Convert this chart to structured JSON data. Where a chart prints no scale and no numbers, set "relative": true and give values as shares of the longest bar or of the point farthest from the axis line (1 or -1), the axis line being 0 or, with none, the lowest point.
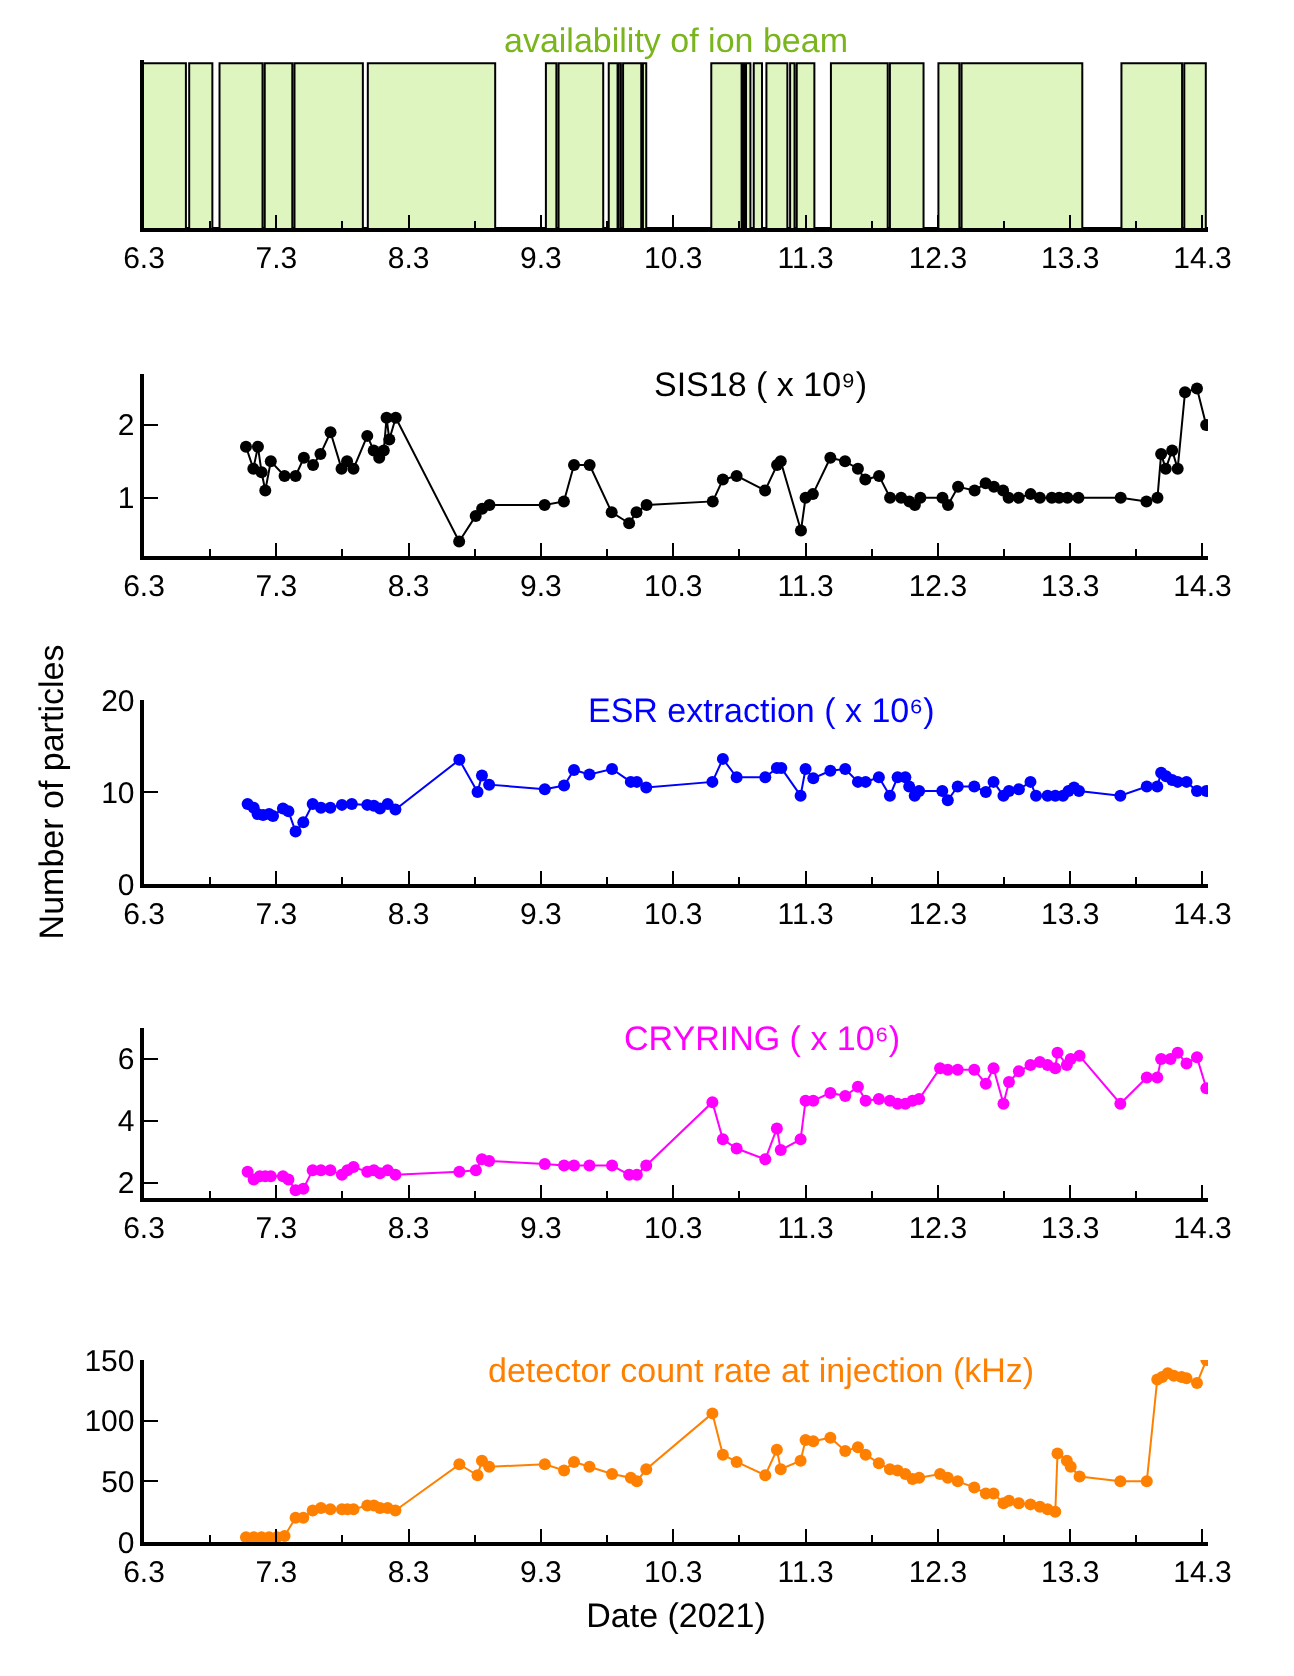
{
  "chart_data": [
    {
      "type": "area",
      "title": "availability of ion beam",
      "relative": true,
      "tick_labels": "x",
      "marker": "none",
      "xlim": [
        "2021-03-06",
        "2021-03-14T01:00"
      ],
      "xticks": [
        {
          "value": "2021-03-06",
          "label": "6.3"
        },
        {
          "value": "2021-03-07",
          "label": "7.3"
        },
        {
          "value": "2021-03-08",
          "label": "8.3"
        },
        {
          "value": "2021-03-09",
          "label": "9.3"
        },
        {
          "value": "2021-03-10",
          "label": "10.3"
        },
        {
          "value": "2021-03-11",
          "label": "11.3"
        },
        {
          "value": "2021-03-12",
          "label": "12.3"
        },
        {
          "value": "2021-03-13",
          "label": "13.3"
        },
        {
          "value": "2021-03-14",
          "label": "14.3"
        }
      ],
      "x": [
        "2021-03-06T00:00",
        "2021-03-06T07:36",
        "2021-03-06T08:12",
        "2021-03-06T12:24",
        "2021-03-06T13:42",
        "2021-03-06T21:30",
        "2021-03-06T21:54",
        "2021-03-07T02:54",
        "2021-03-07T03:18",
        "2021-03-07T15:42",
        "2021-03-07T16:36",
        "2021-03-08T15:42",
        "2021-03-09T00:54",
        "2021-03-09T02:48",
        "2021-03-09T03:12",
        "2021-03-09T11:18",
        "2021-03-09T12:18",
        "2021-03-09T13:54",
        "2021-03-09T14:06",
        "2021-03-09T14:30",
        "2021-03-09T14:54",
        "2021-03-09T18:12",
        "2021-03-09T18:30",
        "2021-03-09T19:06",
        "2021-03-10T06:54",
        "2021-03-10T12:24",
        "2021-03-10T12:42",
        "2021-03-10T12:54",
        "2021-03-10T13:12",
        "2021-03-10T14:00",
        "2021-03-10T14:36",
        "2021-03-10T16:06",
        "2021-03-10T16:54",
        "2021-03-10T20:42",
        "2021-03-10T21:12",
        "2021-03-10T22:00",
        "2021-03-10T22:24",
        "2021-03-11T01:36",
        "2021-03-11T04:36",
        "2021-03-11T14:54",
        "2021-03-11T15:18",
        "2021-03-11T21:24",
        "2021-03-12T00:06",
        "2021-03-12T03:54",
        "2021-03-12T04:18",
        "2021-03-13T02:12",
        "2021-03-13T09:18",
        "2021-03-13T20:18",
        "2021-03-13T20:42",
        "2021-03-14T00:36",
        "2021-03-14T01:00"
      ],
      "series": [
        {
          "color": "#dff5c0",
          "values": [
            1,
            0,
            1,
            0,
            1,
            0,
            1,
            0,
            1,
            0,
            1,
            0,
            1,
            0,
            1,
            0,
            1,
            0,
            1,
            0,
            1,
            0,
            1,
            0,
            1,
            0,
            1,
            0,
            1,
            0,
            1,
            0,
            1,
            0,
            1,
            0,
            1,
            0,
            1,
            0,
            1,
            0,
            1,
            0,
            1,
            0,
            1,
            0,
            1,
            0,
            0
          ]
        }
      ]
    },
    {
      "type": "line",
      "title": "SIS18 ( x 10⁹)",
      "marker": "circle",
      "xlim": [
        "2021-03-06",
        "2021-03-14T01:00"
      ],
      "ylim": [
        0.2,
        2.7
      ],
      "yticks": [
        1,
        2
      ],
      "xticks": [
        {
          "value": "2021-03-06",
          "label": "6.3"
        },
        {
          "value": "2021-03-07",
          "label": "7.3"
        },
        {
          "value": "2021-03-08",
          "label": "8.3"
        },
        {
          "value": "2021-03-09",
          "label": "9.3"
        },
        {
          "value": "2021-03-10",
          "label": "10.3"
        },
        {
          "value": "2021-03-11",
          "label": "11.3"
        },
        {
          "value": "2021-03-12",
          "label": "12.3"
        },
        {
          "value": "2021-03-13",
          "label": "13.3"
        },
        {
          "value": "2021-03-14",
          "label": "14.3"
        }
      ],
      "x": [
        "2021-03-06T18:30",
        "2021-03-06T19:50",
        "2021-03-06T20:40",
        "2021-03-06T21:20",
        "2021-03-06T22:00",
        "2021-03-06T23:00",
        "2021-03-07T01:30",
        "2021-03-07T03:30",
        "2021-03-07T05:00",
        "2021-03-07T06:40",
        "2021-03-07T08:00",
        "2021-03-07T09:50",
        "2021-03-07T11:50",
        "2021-03-07T12:50",
        "2021-03-07T14:00",
        "2021-03-07T16:30",
        "2021-03-07T17:40",
        "2021-03-07T18:40",
        "2021-03-07T19:30",
        "2021-03-07T20:00",
        "2021-03-07T20:30",
        "2021-03-07T21:40",
        "2021-03-08T09:10",
        "2021-03-08T12:10",
        "2021-03-08T13:20",
        "2021-03-08T14:40",
        "2021-03-09T00:40",
        "2021-03-09T04:10",
        "2021-03-09T06:00",
        "2021-03-09T08:50",
        "2021-03-09T12:50",
        "2021-03-09T16:00",
        "2021-03-09T17:20",
        "2021-03-09T19:10",
        "2021-03-10T07:10",
        "2021-03-10T09:00",
        "2021-03-10T11:30",
        "2021-03-10T16:40",
        "2021-03-10T18:50",
        "2021-03-10T19:30",
        "2021-03-10T23:10",
        "2021-03-11T00:00",
        "2021-03-11T01:20",
        "2021-03-11T04:30",
        "2021-03-11T07:10",
        "2021-03-11T09:30",
        "2021-03-11T10:50",
        "2021-03-11T13:20",
        "2021-03-11T15:20",
        "2021-03-11T17:20",
        "2021-03-11T18:50",
        "2021-03-11T19:50",
        "2021-03-11T20:50",
        "2021-03-12T00:50",
        "2021-03-12T01:50",
        "2021-03-12T03:40",
        "2021-03-12T06:40",
        "2021-03-12T08:40",
        "2021-03-12T10:10",
        "2021-03-12T11:50",
        "2021-03-12T12:50",
        "2021-03-12T14:40",
        "2021-03-12T16:50",
        "2021-03-12T18:30",
        "2021-03-12T20:40",
        "2021-03-12T22:00",
        "2021-03-12T23:30",
        "2021-03-13T01:30",
        "2021-03-13T09:10",
        "2021-03-13T13:50",
        "2021-03-13T15:50",
        "2021-03-13T16:30",
        "2021-03-13T17:20",
        "2021-03-13T18:30",
        "2021-03-13T19:30",
        "2021-03-13T20:50",
        "2021-03-13T23:00",
        "2021-03-14T00:40"
      ],
      "series": [
        {
          "color": "#000000",
          "values": [
            1.7,
            1.4,
            1.7,
            1.35,
            1.1,
            1.5,
            1.3,
            1.3,
            1.55,
            1.45,
            1.6,
            1.9,
            1.4,
            1.5,
            1.4,
            1.85,
            1.65,
            1.55,
            1.65,
            2.1,
            1.8,
            2.1,
            0.4,
            0.75,
            0.85,
            0.9,
            0.9,
            0.95,
            1.45,
            1.45,
            0.8,
            0.65,
            0.8,
            0.9,
            0.95,
            1.25,
            1.3,
            1.1,
            1.45,
            1.5,
            0.55,
            1.0,
            1.05,
            1.55,
            1.5,
            1.4,
            1.25,
            1.3,
            1.0,
            1.0,
            0.95,
            0.9,
            1.0,
            1.0,
            0.9,
            1.15,
            1.1,
            1.2,
            1.15,
            1.1,
            1.0,
            1.0,
            1.05,
            1.0,
            1.0,
            1.0,
            1.0,
            1.0,
            1.0,
            0.95,
            1.0,
            1.6,
            1.4,
            1.65,
            1.4,
            2.45,
            2.5,
            2.0
          ]
        }
      ]
    },
    {
      "type": "line",
      "title": "ESR extraction ( x 10⁶)",
      "ylabel": "Number of particles",
      "marker": "circle",
      "xlim": [
        "2021-03-06",
        "2021-03-14T01:00"
      ],
      "ylim": [
        0,
        20
      ],
      "yticks": [
        0,
        10,
        20
      ],
      "xticks": [
        {
          "value": "2021-03-06",
          "label": "6.3"
        },
        {
          "value": "2021-03-07",
          "label": "7.3"
        },
        {
          "value": "2021-03-08",
          "label": "8.3"
        },
        {
          "value": "2021-03-09",
          "label": "9.3"
        },
        {
          "value": "2021-03-10",
          "label": "10.3"
        },
        {
          "value": "2021-03-11",
          "label": "11.3"
        },
        {
          "value": "2021-03-12",
          "label": "12.3"
        },
        {
          "value": "2021-03-13",
          "label": "13.3"
        },
        {
          "value": "2021-03-14",
          "label": "14.3"
        }
      ],
      "x": [
        "2021-03-06T18:48",
        "2021-03-06T19:54",
        "2021-03-06T20:36",
        "2021-03-06T21:36",
        "2021-03-06T22:42",
        "2021-03-06T23:24",
        "2021-03-07T01:12",
        "2021-03-07T02:12",
        "2021-03-07T03:30",
        "2021-03-07T04:54",
        "2021-03-07T06:36",
        "2021-03-07T08:06",
        "2021-03-07T09:48",
        "2021-03-07T11:54",
        "2021-03-07T13:42",
        "2021-03-07T16:30",
        "2021-03-07T17:42",
        "2021-03-07T18:48",
        "2021-03-07T20:12",
        "2021-03-07T21:36",
        "2021-03-08T09:12",
        "2021-03-08T12:30",
        "2021-03-08T13:18",
        "2021-03-08T14:36",
        "2021-03-09T00:42",
        "2021-03-09T04:12",
        "2021-03-09T06:00",
        "2021-03-09T08:48",
        "2021-03-09T12:54",
        "2021-03-09T16:18",
        "2021-03-09T17:24",
        "2021-03-09T19:06",
        "2021-03-10T07:06",
        "2021-03-10T09:00",
        "2021-03-10T11:30",
        "2021-03-10T16:42",
        "2021-03-10T18:48",
        "2021-03-10T19:36",
        "2021-03-10T23:06",
        "2021-03-11T00:00",
        "2021-03-11T01:24",
        "2021-03-11T04:30",
        "2021-03-11T07:12",
        "2021-03-11T09:30",
        "2021-03-11T10:54",
        "2021-03-11T13:18",
        "2021-03-11T15:18",
        "2021-03-11T16:42",
        "2021-03-11T18:06",
        "2021-03-11T18:48",
        "2021-03-11T19:48",
        "2021-03-11T20:36",
        "2021-03-12T00:48",
        "2021-03-12T01:48",
        "2021-03-12T03:36",
        "2021-03-12T06:36",
        "2021-03-12T08:42",
        "2021-03-12T10:06",
        "2021-03-12T11:54",
        "2021-03-12T12:54",
        "2021-03-12T14:42",
        "2021-03-12T16:48",
        "2021-03-12T17:48",
        "2021-03-12T19:54",
        "2021-03-12T21:18",
        "2021-03-12T22:42",
        "2021-03-12T23:42",
        "2021-03-13T00:42",
        "2021-03-13T01:36",
        "2021-03-13T09:06",
        "2021-03-13T13:54",
        "2021-03-13T15:48",
        "2021-03-13T16:30",
        "2021-03-13T17:24",
        "2021-03-13T18:30",
        "2021-03-13T19:30",
        "2021-03-13T21:06",
        "2021-03-13T23:00",
        "2021-03-14T00:42"
      ],
      "series": [
        {
          "color": "#0000ff",
          "values": [
            8.7,
            8.3,
            7.6,
            7.5,
            7.6,
            7.4,
            8.2,
            7.9,
            5.7,
            6.7,
            8.7,
            8.3,
            8.3,
            8.6,
            8.7,
            8.6,
            8.5,
            8.2,
            8.7,
            8.1,
            13.5,
            10,
            11.8,
            10.8,
            10.3,
            10.7,
            12.4,
            11.9,
            12.5,
            11.1,
            11.1,
            10.5,
            11.1,
            13.6,
            11.6,
            11.6,
            12.6,
            12.6,
            9.6,
            12.5,
            11.5,
            12.3,
            12.5,
            11.1,
            11.1,
            11.6,
            9.6,
            11.6,
            11.6,
            10.6,
            9.6,
            10.1,
            10.1,
            9.1,
            10.6,
            10.6,
            10,
            11.1,
            9.6,
            10.1,
            10.3,
            11.1,
            9.6,
            9.6,
            9.6,
            9.6,
            10.1,
            10.5,
            10.1,
            9.6,
            10.6,
            10.6,
            12.1,
            11.7,
            11.3,
            11.1,
            11.1,
            10.1,
            10.1
          ]
        }
      ]
    },
    {
      "type": "line",
      "title": "CRYRING ( x 10⁶)",
      "marker": "circle",
      "xlim": [
        "2021-03-06",
        "2021-03-14T01:00"
      ],
      "ylim": [
        1.5,
        7
      ],
      "yticks": [
        2,
        4,
        6
      ],
      "xticks": [
        {
          "value": "2021-03-06",
          "label": "6.3"
        },
        {
          "value": "2021-03-07",
          "label": "7.3"
        },
        {
          "value": "2021-03-08",
          "label": "8.3"
        },
        {
          "value": "2021-03-09",
          "label": "9.3"
        },
        {
          "value": "2021-03-10",
          "label": "10.3"
        },
        {
          "value": "2021-03-11",
          "label": "11.3"
        },
        {
          "value": "2021-03-12",
          "label": "12.3"
        },
        {
          "value": "2021-03-13",
          "label": "13.3"
        },
        {
          "value": "2021-03-14",
          "label": "14.3"
        }
      ],
      "x": [
        "2021-03-06T18:48",
        "2021-03-06T19:54",
        "2021-03-06T21:00",
        "2021-03-06T22:00",
        "2021-03-06T23:00",
        "2021-03-07T01:12",
        "2021-03-07T02:12",
        "2021-03-07T03:30",
        "2021-03-07T04:54",
        "2021-03-07T06:36",
        "2021-03-07T08:06",
        "2021-03-07T09:48",
        "2021-03-07T11:54",
        "2021-03-07T12:54",
        "2021-03-07T14:00",
        "2021-03-07T16:30",
        "2021-03-07T17:42",
        "2021-03-07T18:48",
        "2021-03-07T20:12",
        "2021-03-07T21:36",
        "2021-03-08T09:12",
        "2021-03-08T12:12",
        "2021-03-08T13:18",
        "2021-03-08T14:36",
        "2021-03-09T00:42",
        "2021-03-09T04:12",
        "2021-03-09T06:00",
        "2021-03-09T08:48",
        "2021-03-09T12:54",
        "2021-03-09T16:00",
        "2021-03-09T17:24",
        "2021-03-09T19:06",
        "2021-03-10T07:06",
        "2021-03-10T09:00",
        "2021-03-10T11:30",
        "2021-03-10T16:42",
        "2021-03-10T18:48",
        "2021-03-10T19:30",
        "2021-03-10T23:06",
        "2021-03-11T00:00",
        "2021-03-11T01:24",
        "2021-03-11T04:30",
        "2021-03-11T07:12",
        "2021-03-11T09:30",
        "2021-03-11T10:54",
        "2021-03-11T13:18",
        "2021-03-11T15:18",
        "2021-03-11T16:42",
        "2021-03-11T18:06",
        "2021-03-11T19:24",
        "2021-03-11T20:36",
        "2021-03-12T00:24",
        "2021-03-12T01:48",
        "2021-03-12T03:36",
        "2021-03-12T06:36",
        "2021-03-12T08:42",
        "2021-03-12T10:06",
        "2021-03-12T11:54",
        "2021-03-12T12:54",
        "2021-03-12T14:42",
        "2021-03-12T16:48",
        "2021-03-12T18:30",
        "2021-03-12T19:54",
        "2021-03-12T21:18",
        "2021-03-12T21:42",
        "2021-03-12T23:24",
        "2021-03-13T00:06",
        "2021-03-13T01:42",
        "2021-03-13T09:06",
        "2021-03-13T13:54",
        "2021-03-13T15:48",
        "2021-03-13T16:30",
        "2021-03-13T18:12",
        "2021-03-13T19:30",
        "2021-03-13T21:06",
        "2021-03-13T23:00",
        "2021-03-14T00:42"
      ],
      "series": [
        {
          "color": "#ff00ff",
          "values": [
            2.35,
            2.1,
            2.2,
            2.2,
            2.2,
            2.2,
            2.1,
            1.75,
            1.8,
            2.4,
            2.4,
            2.4,
            2.25,
            2.4,
            2.5,
            2.35,
            2.4,
            2.3,
            2.4,
            2.25,
            2.35,
            2.4,
            2.75,
            2.7,
            2.6,
            2.55,
            2.55,
            2.55,
            2.55,
            2.25,
            2.25,
            2.55,
            4.6,
            3.4,
            3.1,
            2.75,
            3.75,
            3.05,
            3.4,
            4.65,
            4.65,
            4.9,
            4.8,
            5.1,
            4.65,
            4.7,
            4.65,
            4.55,
            4.55,
            4.65,
            4.7,
            5.7,
            5.65,
            5.65,
            5.65,
            5.2,
            5.7,
            4.55,
            5.25,
            5.6,
            5.8,
            5.9,
            5.8,
            5.7,
            6.2,
            5.8,
            6,
            6.1,
            4.55,
            5.4,
            5.4,
            6,
            6,
            6.2,
            5.85,
            6.05,
            5.05
          ]
        }
      ]
    },
    {
      "type": "line",
      "title": "detector count rate at injection (kHz)",
      "xlabel": "Date (2021)",
      "marker": "circle",
      "xlim": [
        "2021-03-06",
        "2021-03-14T01:00"
      ],
      "ylim": [
        0,
        150
      ],
      "yticks": [
        0,
        50,
        100,
        150
      ],
      "xticks": [
        {
          "value": "2021-03-06",
          "label": "6.3"
        },
        {
          "value": "2021-03-07",
          "label": "7.3"
        },
        {
          "value": "2021-03-08",
          "label": "8.3"
        },
        {
          "value": "2021-03-09",
          "label": "9.3"
        },
        {
          "value": "2021-03-10",
          "label": "10.3"
        },
        {
          "value": "2021-03-11",
          "label": "11.3"
        },
        {
          "value": "2021-03-12",
          "label": "12.3"
        },
        {
          "value": "2021-03-13",
          "label": "13.3"
        },
        {
          "value": "2021-03-14",
          "label": "14.3"
        }
      ],
      "x": [
        "2021-03-06T18:30",
        "2021-03-06T19:54",
        "2021-03-06T21:18",
        "2021-03-06T22:42",
        "2021-03-07T00:06",
        "2021-03-07T01:30",
        "2021-03-07T03:30",
        "2021-03-07T04:54",
        "2021-03-07T06:36",
        "2021-03-07T08:06",
        "2021-03-07T09:48",
        "2021-03-07T11:54",
        "2021-03-07T12:54",
        "2021-03-07T14:00",
        "2021-03-07T16:30",
        "2021-03-07T17:42",
        "2021-03-07T18:48",
        "2021-03-07T20:12",
        "2021-03-07T21:36",
        "2021-03-08T09:12",
        "2021-03-08T12:30",
        "2021-03-08T13:18",
        "2021-03-08T14:36",
        "2021-03-09T00:42",
        "2021-03-09T04:12",
        "2021-03-09T06:00",
        "2021-03-09T08:48",
        "2021-03-09T12:54",
        "2021-03-09T16:18",
        "2021-03-09T17:24",
        "2021-03-09T19:06",
        "2021-03-10T07:06",
        "2021-03-10T09:00",
        "2021-03-10T11:30",
        "2021-03-10T16:42",
        "2021-03-10T18:48",
        "2021-03-10T19:30",
        "2021-03-10T23:06",
        "2021-03-11T00:00",
        "2021-03-11T01:24",
        "2021-03-11T04:30",
        "2021-03-11T07:12",
        "2021-03-11T09:30",
        "2021-03-11T10:54",
        "2021-03-11T13:18",
        "2021-03-11T15:18",
        "2021-03-11T16:42",
        "2021-03-11T18:06",
        "2021-03-11T19:24",
        "2021-03-11T20:36",
        "2021-03-12T00:24",
        "2021-03-12T01:48",
        "2021-03-12T03:36",
        "2021-03-12T06:36",
        "2021-03-12T08:42",
        "2021-03-12T10:06",
        "2021-03-12T11:54",
        "2021-03-12T12:54",
        "2021-03-12T14:42",
        "2021-03-12T16:48",
        "2021-03-12T18:30",
        "2021-03-12T19:54",
        "2021-03-12T21:18",
        "2021-03-12T21:42",
        "2021-03-12T23:24",
        "2021-03-13T00:06",
        "2021-03-13T01:42",
        "2021-03-13T09:06",
        "2021-03-13T13:54",
        "2021-03-13T15:48",
        "2021-03-13T16:42",
        "2021-03-13T17:42",
        "2021-03-13T18:48",
        "2021-03-13T20:12",
        "2021-03-13T21:06",
        "2021-03-13T23:00",
        "2021-03-14T00:42"
      ],
      "series": [
        {
          "color": "#ff8000",
          "values": [
            4,
            4,
            4,
            4,
            4,
            5,
            20,
            20,
            26,
            28,
            27,
            27,
            27,
            27,
            30,
            30,
            28,
            28,
            26,
            64,
            55,
            67,
            62,
            64,
            59,
            66,
            62,
            56,
            53,
            50,
            60,
            106,
            72,
            66,
            55,
            76,
            60,
            67,
            84,
            83,
            86,
            75,
            78,
            72,
            65,
            60,
            59,
            56,
            52,
            53,
            56,
            53,
            50,
            45,
            40,
            40,
            32,
            34,
            32,
            31,
            29,
            27,
            25,
            73,
            67,
            62,
            54,
            50,
            50,
            134,
            136,
            139,
            137,
            136,
            135,
            131,
            150
          ]
        }
      ]
    }
  ]
}
